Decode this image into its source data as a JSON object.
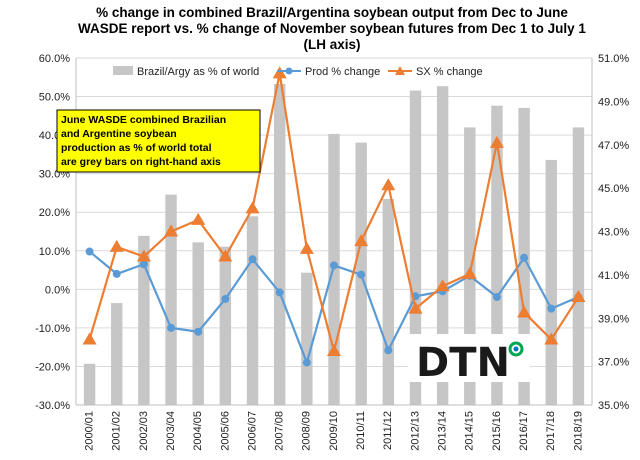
{
  "chart_data": {
    "type": "bar+line",
    "title_lines": [
      "% change in combined Brazil/Argentina soybean output from Dec to June",
      "WASDE report vs. % change of November soybean futures from Dec 1 to July 1",
      "(LH axis)"
    ],
    "categories": [
      "2000/01",
      "2001/02",
      "2002/03",
      "2003/04",
      "2004/05",
      "2005/06",
      "2006/07",
      "2007/08",
      "2008/09",
      "2009/10",
      "2010/11",
      "2011/12",
      "2012/13",
      "2013/14",
      "2014/15",
      "2015/16",
      "2016/17",
      "2017/18",
      "2018/19"
    ],
    "left_axis": {
      "min": -30,
      "max": 60,
      "step": 10,
      "ticks": [
        "-30.0%",
        "-20.0%",
        "-10.0%",
        "0.0%",
        "10.0%",
        "20.0%",
        "30.0%",
        "40.0%",
        "50.0%",
        "60.0%"
      ]
    },
    "right_axis": {
      "min": 35,
      "max": 51,
      "step": 2,
      "ticks": [
        "35.0%",
        "37.0%",
        "39.0%",
        "41.0%",
        "43.0%",
        "45.0%",
        "47.0%",
        "49.0%",
        "51.0%"
      ]
    },
    "series": [
      {
        "name": "Brazil/Argy as % of world",
        "type": "bar",
        "axis": "right",
        "color": "#c6c6c6",
        "values": [
          36.9,
          39.7,
          42.8,
          44.7,
          42.5,
          42.3,
          43.7,
          49.8,
          41.1,
          47.5,
          47.1,
          44.5,
          49.5,
          49.7,
          47.8,
          48.8,
          48.7,
          46.3,
          47.8
        ]
      },
      {
        "name": "Prod % change",
        "type": "line",
        "axis": "left",
        "color": "#5b9bd5",
        "values": [
          9.8,
          4.0,
          6.5,
          -10.0,
          -11.0,
          -2.5,
          7.8,
          -0.8,
          -19.0,
          6.2,
          3.8,
          -15.8,
          -1.8,
          -0.5,
          3.5,
          -2.0,
          8.2,
          -5.0,
          -2.0
        ]
      },
      {
        "name": "SX % change",
        "type": "line",
        "axis": "left",
        "color": "#ed7d31",
        "values": [
          -13.0,
          11.0,
          8.5,
          15.0,
          18.0,
          8.5,
          21.0,
          56.0,
          10.5,
          -16.0,
          12.5,
          27.0,
          -5.0,
          0.8,
          4.0,
          38.0,
          -6.0,
          -13.0,
          -2.0
        ]
      }
    ],
    "legend": {
      "position": "top-center"
    },
    "annotation": "June WASDE combined Brazilian and Argentine soybean production as % of world total are grey bars on right-hand axis",
    "annotation_lines": [
      "June WASDE combined Brazilian",
      "and Argentine soybean",
      "production as % of world total",
      "are grey bars on right-hand axis"
    ],
    "annotation_bg": "#ffff00",
    "grid": true
  },
  "logo": {
    "text": "DTN",
    "accent_colors": [
      "#00a651",
      "#0076c0"
    ]
  }
}
